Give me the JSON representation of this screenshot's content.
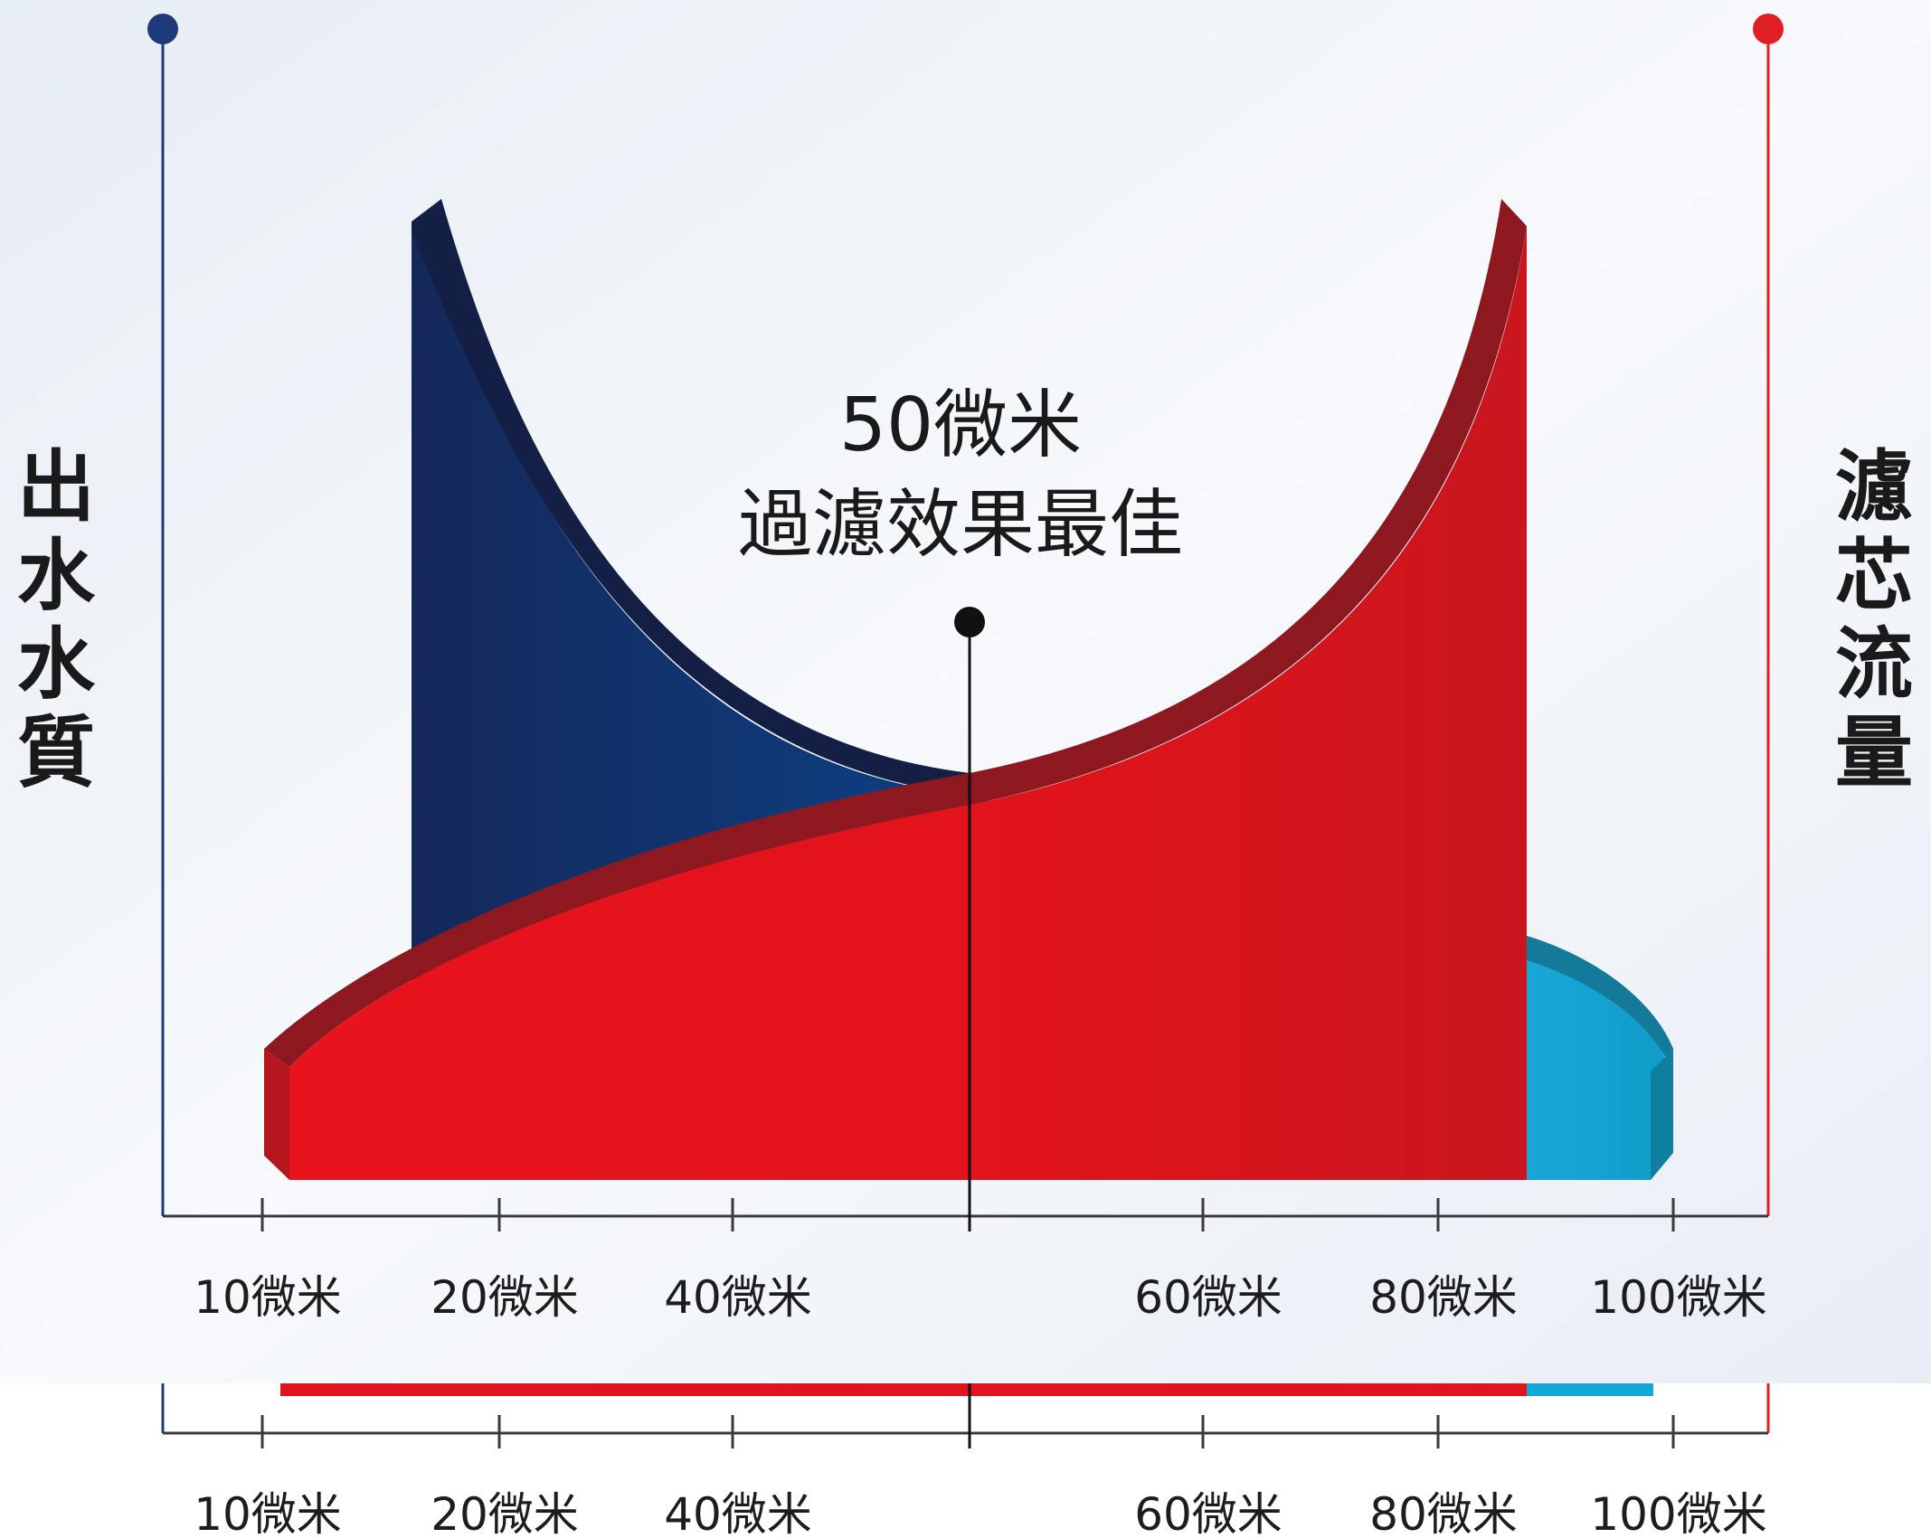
{
  "chart_data": {
    "type": "area",
    "title": "",
    "left_axis_label": "出水水質",
    "right_axis_label": "濾芯流量",
    "annotation": {
      "line1": "50微米",
      "line2": "過濾效果最佳"
    },
    "ticks": [
      {
        "label": "10微米",
        "value": 10
      },
      {
        "label": "20微米",
        "value": 20
      },
      {
        "label": "40微米",
        "value": 40
      },
      {
        "label": "",
        "value": 50
      },
      {
        "label": "60微米",
        "value": 60
      },
      {
        "label": "80微米",
        "value": 80
      },
      {
        "label": "100微米",
        "value": 100
      }
    ],
    "series": [
      {
        "name": "出水水質",
        "color": "#1e3f7a"
      },
      {
        "name": "濾芯流量",
        "color": "#e0141c"
      }
    ]
  },
  "colors": {
    "left_axis": "#1f3a7a",
    "right_axis": "#e01e24",
    "blue_dark": "#16295e",
    "blue_mid": "#0d4a8f",
    "cyan": "#12a9d4",
    "red": "#e0141c",
    "red_dark": "#6e1318"
  }
}
